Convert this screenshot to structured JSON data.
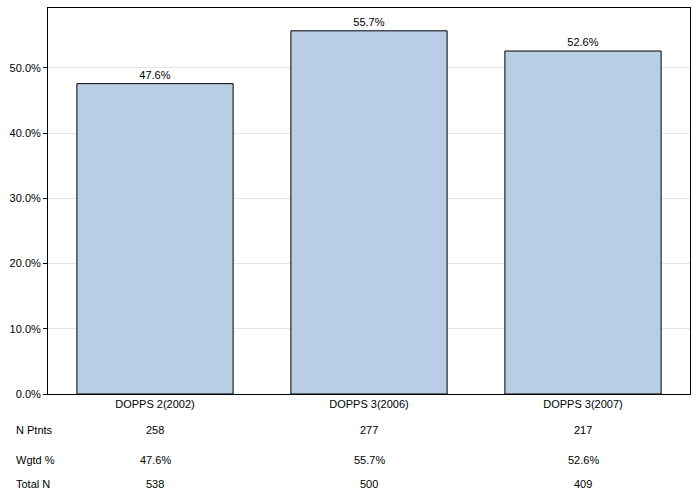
{
  "chart_data": {
    "type": "bar",
    "categories": [
      "DOPPS 2(2002)",
      "DOPPS 3(2006)",
      "DOPPS 3(2007)"
    ],
    "values": [
      47.6,
      55.7,
      52.6
    ],
    "value_labels": [
      "47.6%",
      "55.7%",
      "52.6%"
    ],
    "data_labels": true,
    "color": "#b9cde5",
    "ylim": [
      0,
      59.2
    ],
    "yticks": [
      {
        "value": 0,
        "label": "0.0%"
      },
      {
        "value": 10,
        "label": "10.0%"
      },
      {
        "value": 20,
        "label": "20.0%"
      },
      {
        "value": 30,
        "label": "30.0%"
      },
      {
        "value": 40,
        "label": "40.0%"
      },
      {
        "value": 50,
        "label": "50.0%"
      }
    ],
    "grid": true,
    "table_rows": [
      {
        "label": "N Ptnts",
        "values": [
          258,
          277,
          217
        ]
      },
      {
        "label": "Wgtd %",
        "values": [
          47.6,
          55.7,
          52.6
        ],
        "value_labels": [
          "47.6%",
          "55.7%",
          "52.6%"
        ]
      },
      {
        "label": "Total N",
        "values": [
          538,
          500,
          409
        ]
      }
    ]
  }
}
